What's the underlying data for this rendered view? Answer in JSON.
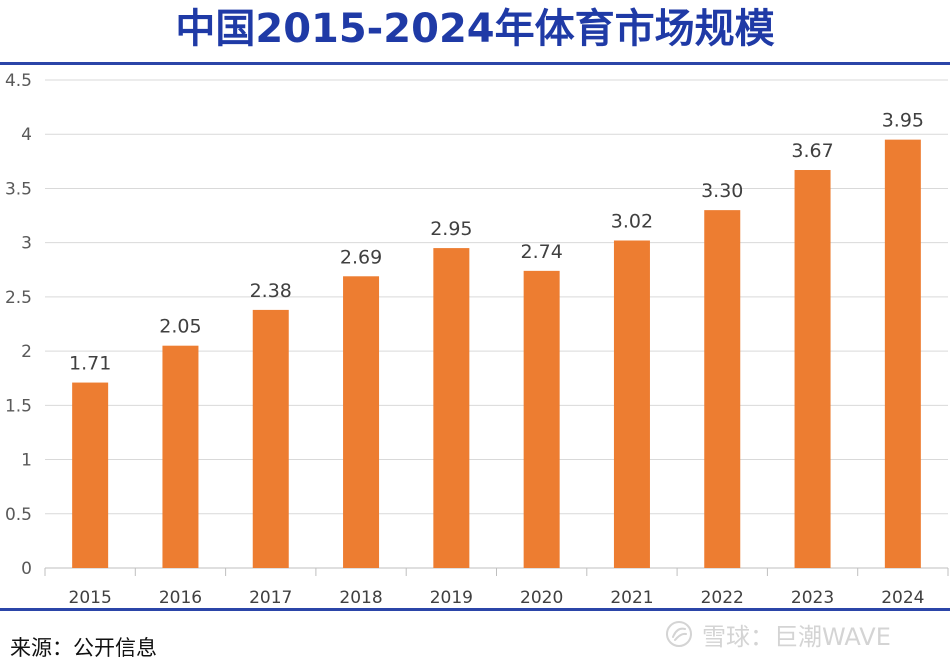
{
  "header": {
    "title": "中国2015-2024年体育市场规模"
  },
  "footer": {
    "source": "来源：公开信息",
    "watermark": "雪球：巨潮WAVE"
  },
  "colors": {
    "bar": "#ed7d31",
    "title": "#1f3aa6",
    "rule": "#2b45a8",
    "grid": "#d9d9d9"
  },
  "chart_data": {
    "type": "bar",
    "title": "中国2015-2024年体育市场规模",
    "categories": [
      "2015",
      "2016",
      "2017",
      "2018",
      "2019",
      "2020",
      "2021",
      "2022",
      "2023",
      "2024"
    ],
    "values": [
      1.71,
      2.05,
      2.38,
      2.69,
      2.95,
      2.74,
      3.02,
      3.3,
      3.67,
      3.95
    ],
    "value_labels": [
      "1.71",
      "2.05",
      "2.38",
      "2.69",
      "2.95",
      "2.74",
      "3.02",
      "3.30",
      "3.67",
      "3.95"
    ],
    "yticks": [
      "0",
      "0.5",
      "1",
      "1.5",
      "2",
      "2.5",
      "3",
      "3.5",
      "4",
      "4.5"
    ],
    "ylim": [
      0,
      4.5
    ],
    "xlabel": "",
    "ylabel": "",
    "grid": true,
    "legend": "none"
  }
}
